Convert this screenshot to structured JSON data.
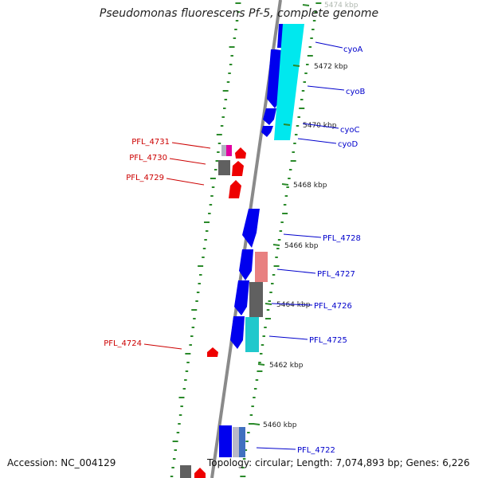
{
  "title": "Pseudomonas fluorescens Pf-5, complete genome",
  "footer": {
    "accession": "Accession: NC_004129",
    "summary": "Topology: circular; Length: 7,074,893 bp; Genes: 6,226"
  },
  "colors": {
    "backbone": "#808080",
    "gc_ticks": "#2a8a2a",
    "forward_cds": "#0000ee",
    "reverse_cds": "#ee0000",
    "forward_label": "#0000cc",
    "reverse_label": "#cc0000",
    "cyan_feature": "#00e0e8",
    "teal_feature": "#20c0c8",
    "gray_feature": "#606060",
    "pink_feature": "#e88080",
    "magenta_feature": "#e000a0"
  },
  "scale": {
    "labels": [
      "5474 kbp",
      "5472 kbp",
      "5470 kbp",
      "5468 kbp",
      "5466 kbp",
      "5464 kbp",
      "5462 kbp",
      "5460 kbp"
    ]
  },
  "forward_genes": [
    {
      "label": "cyoA"
    },
    {
      "label": "cyoB"
    },
    {
      "label": "cyoC"
    },
    {
      "label": "cyoD"
    },
    {
      "label": "PFL_4728"
    },
    {
      "label": "PFL_4727"
    },
    {
      "label": "PFL_4726"
    },
    {
      "label": "PFL_4725"
    },
    {
      "label": "PFL_4722"
    }
  ],
  "reverse_genes": [
    {
      "label": "PFL_4731"
    },
    {
      "label": "PFL_4730"
    },
    {
      "label": "PFL_4729"
    },
    {
      "label": "PFL_4724"
    }
  ]
}
